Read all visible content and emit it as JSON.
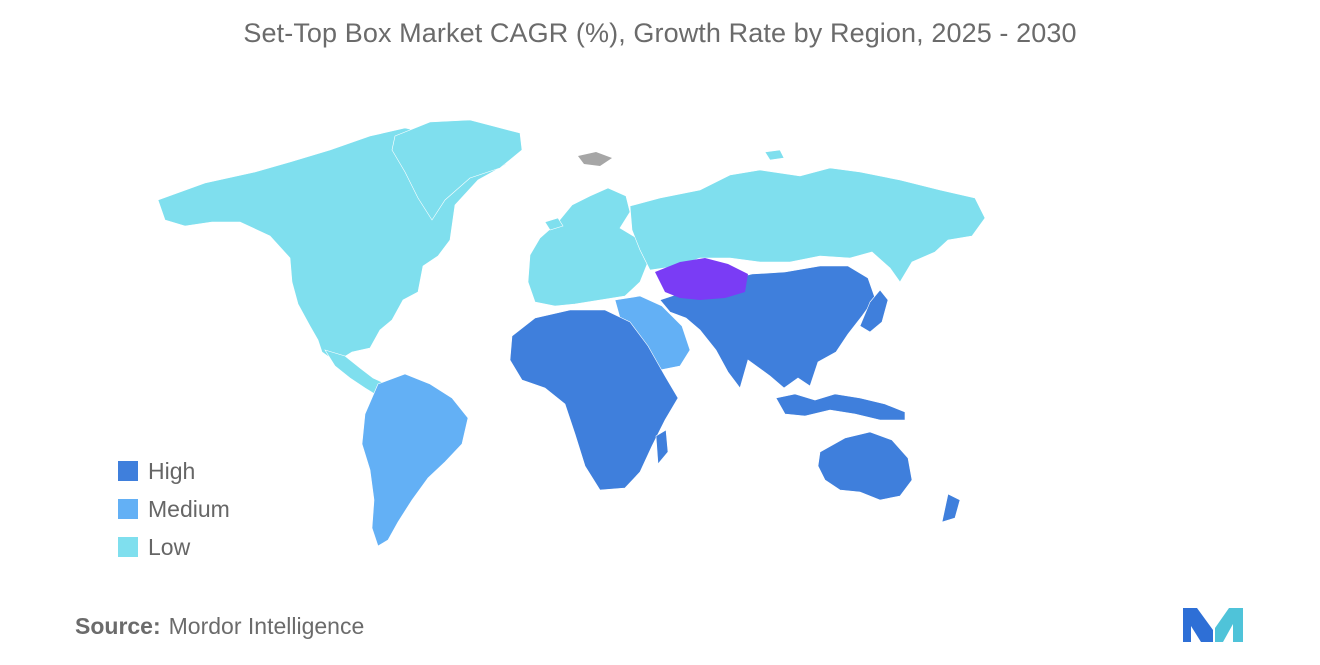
{
  "title": "Set-Top Box Market CAGR (%), Growth Rate by Region, 2025 - 2030",
  "legend": [
    {
      "label": "High",
      "color": "#3f7fdc"
    },
    {
      "label": "Medium",
      "color": "#63b0f5"
    },
    {
      "label": "Low",
      "color": "#7fdfee"
    }
  ],
  "highlight_color": "#7a3cf5",
  "no_data_color": "#a6a6a6",
  "source": {
    "label": "Source:",
    "value": "Mordor Intelligence"
  },
  "logo_colors": [
    "#2e6fd6",
    "#4fc3d9"
  ]
}
